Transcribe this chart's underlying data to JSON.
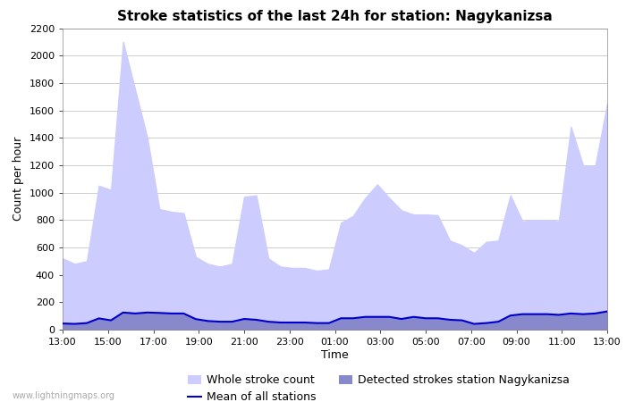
{
  "title": "Stroke statistics of the last 24h for station: Nagykanizsa",
  "xlabel": "Time",
  "ylabel": "Count per hour",
  "watermark": "www.lightningmaps.org",
  "ylim": [
    0,
    2200
  ],
  "yticks": [
    0,
    200,
    400,
    600,
    800,
    1000,
    1200,
    1400,
    1600,
    1800,
    2000,
    2200
  ],
  "xtick_labels": [
    "13:00",
    "15:00",
    "17:00",
    "19:00",
    "21:00",
    "23:00",
    "01:00",
    "03:00",
    "05:00",
    "07:00",
    "09:00",
    "11:00",
    "13:00"
  ],
  "whole_stroke": [
    520,
    480,
    500,
    1050,
    1020,
    2100,
    1750,
    1400,
    880,
    860,
    850,
    530,
    480,
    460,
    480,
    970,
    980,
    520,
    460,
    450,
    450,
    430,
    440,
    780,
    830,
    960,
    1060,
    960,
    870,
    840,
    840,
    835,
    650,
    615,
    560,
    640,
    650,
    980,
    790,
    800,
    800,
    790,
    1480,
    1200,
    1190,
    1650
  ],
  "detected_strokes": [
    40,
    40,
    45,
    80,
    65,
    120,
    115,
    120,
    120,
    115,
    115,
    75,
    60,
    55,
    55,
    75,
    70,
    55,
    50,
    50,
    50,
    45,
    45,
    80,
    80,
    90,
    90,
    90,
    75,
    90,
    80,
    80,
    70,
    65,
    40,
    45,
    55,
    100,
    110,
    110,
    110,
    105,
    115,
    110,
    115,
    130
  ],
  "mean_all": [
    45,
    42,
    48,
    82,
    68,
    125,
    118,
    125,
    122,
    118,
    118,
    77,
    63,
    58,
    58,
    78,
    72,
    58,
    52,
    52,
    52,
    48,
    48,
    83,
    83,
    93,
    93,
    93,
    78,
    93,
    83,
    83,
    72,
    68,
    42,
    48,
    58,
    103,
    113,
    113,
    113,
    108,
    118,
    113,
    118,
    133
  ],
  "whole_color": "#ccccff",
  "detected_color": "#8888cc",
  "mean_color": "#0000cc",
  "background_color": "#ffffff",
  "grid_color": "#bbbbbb",
  "title_fontsize": 11,
  "axis_fontsize": 9,
  "tick_fontsize": 8,
  "legend_row1": [
    "Whole stroke count",
    "Mean of all stations"
  ],
  "legend_row2": [
    "Detected strokes station Nagykanizsa"
  ]
}
